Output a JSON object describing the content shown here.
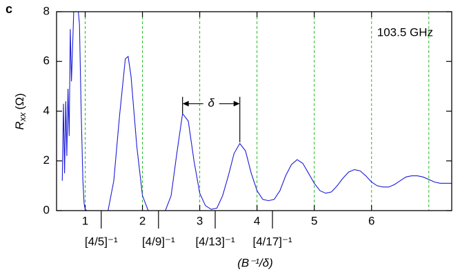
{
  "chart_data": {
    "type": "line",
    "panel_label": "c",
    "annotation": "103.5 GHz",
    "period_label": "δ",
    "x_label": "(B⁻¹/δ)",
    "y_label": {
      "symbol": "R",
      "subscript": "xx",
      "unit": "(Ω)"
    },
    "xlim": [
      0.5,
      7.4
    ],
    "ylim": [
      0,
      8
    ],
    "xticks": [
      1,
      2,
      3,
      4,
      5,
      6
    ],
    "yticks": [
      0,
      2,
      4,
      6,
      8
    ],
    "vgrid": [
      1,
      2,
      3,
      4,
      5,
      6,
      7
    ],
    "marked_positions": [
      {
        "value": 1.28,
        "label": "[4/5]⁻¹"
      },
      {
        "value": 2.28,
        "label": "[4/9]⁻¹"
      },
      {
        "value": 3.27,
        "label": "[4/13]⁻¹"
      },
      {
        "value": 4.27,
        "label": "[4/17]⁻¹"
      }
    ],
    "series": [
      {
        "color": "#1a1ad6",
        "x": [
          0.6,
          0.62,
          0.64,
          0.66,
          0.68,
          0.7,
          0.72,
          0.74,
          0.76,
          0.78,
          0.8,
          0.82,
          0.85,
          0.88,
          0.9,
          0.93,
          0.96,
          0.98,
          1.0,
          1.03,
          1.1,
          1.2,
          1.3,
          1.4,
          1.5,
          1.6,
          1.7,
          1.75,
          1.8,
          1.9,
          2.0,
          2.1,
          2.2,
          2.3,
          2.4,
          2.5,
          2.6,
          2.7,
          2.8,
          2.9,
          3.0,
          3.1,
          3.2,
          3.3,
          3.4,
          3.5,
          3.6,
          3.7,
          3.8,
          3.9,
          4.0,
          4.1,
          4.2,
          4.3,
          4.4,
          4.5,
          4.6,
          4.7,
          4.8,
          4.9,
          5.0,
          5.1,
          5.2,
          5.3,
          5.4,
          5.5,
          5.6,
          5.7,
          5.8,
          5.9,
          6.0,
          6.1,
          6.2,
          6.3,
          6.4,
          6.5,
          6.6,
          6.7,
          6.8,
          6.9,
          7.0,
          7.1,
          7.2,
          7.3,
          7.4
        ],
        "values": [
          1.2,
          4.3,
          1.5,
          4.4,
          2.2,
          4.9,
          3.0,
          7.3,
          5.2,
          6.6,
          8.0,
          8.0,
          8.0,
          8.0,
          7.5,
          4.0,
          1.2,
          0.3,
          0.05,
          0,
          0,
          0,
          0,
          0,
          1.2,
          3.8,
          6.1,
          6.2,
          5.4,
          2.6,
          0.6,
          0,
          0,
          0,
          0,
          0.6,
          2.3,
          3.9,
          3.6,
          2.0,
          0.7,
          0.2,
          0.05,
          0.1,
          0.6,
          1.4,
          2.3,
          2.7,
          2.4,
          1.5,
          0.8,
          0.45,
          0.4,
          0.45,
          0.8,
          1.4,
          1.85,
          2.05,
          1.9,
          1.5,
          1.1,
          0.8,
          0.7,
          0.75,
          1.0,
          1.3,
          1.55,
          1.65,
          1.6,
          1.4,
          1.15,
          1.0,
          0.95,
          0.95,
          1.05,
          1.2,
          1.35,
          1.4,
          1.4,
          1.35,
          1.25,
          1.15,
          1.1,
          1.1,
          1.1
        ]
      }
    ]
  }
}
